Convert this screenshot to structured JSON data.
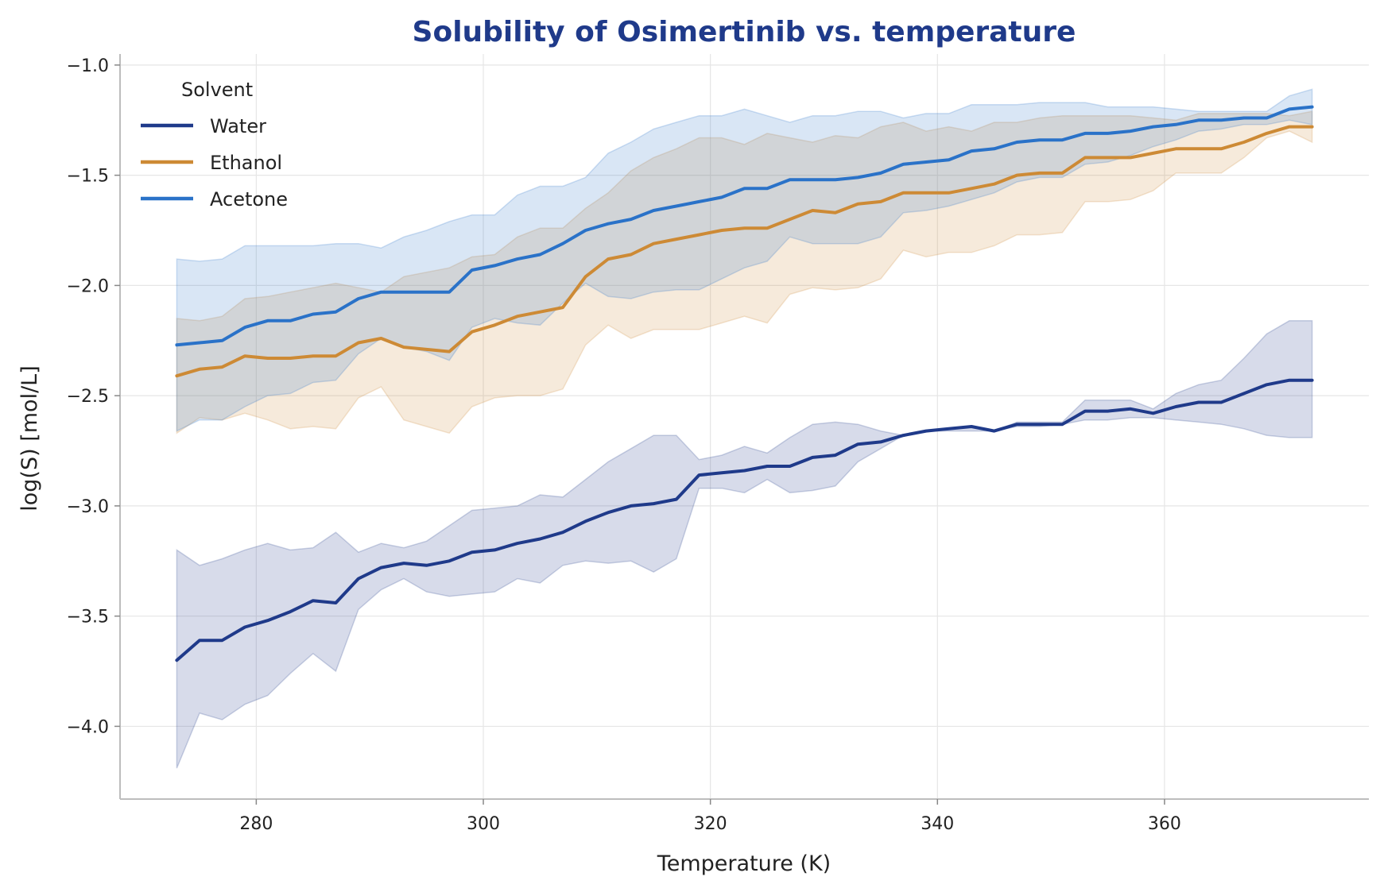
{
  "chart_data": {
    "type": "line",
    "title": "Solubility of Osimertinib vs. temperature",
    "xlabel": "Temperature (K)",
    "ylabel": "log(S) [mol/L]",
    "xlim": [
      268,
      378
    ],
    "ylim": [
      -4.33,
      -0.95
    ],
    "xticks": [
      280,
      300,
      320,
      340,
      360
    ],
    "xtick_labels": [
      "280",
      "300",
      "320",
      "340",
      "360"
    ],
    "yticks": [
      -4.0,
      -3.5,
      -3.0,
      -2.5,
      -2.0,
      -1.5,
      -1.0
    ],
    "ytick_labels": [
      "−4.0",
      "−3.5",
      "−3.0",
      "−2.5",
      "−2.0",
      "−1.5",
      "−1.0"
    ],
    "grid": true,
    "legend": {
      "title": "Solvent",
      "position": "top-left"
    },
    "x": [
      273,
      275,
      277,
      279,
      281,
      283,
      285,
      287,
      289,
      291,
      293,
      295,
      297,
      299,
      301,
      303,
      305,
      307,
      309,
      311,
      313,
      315,
      317,
      319,
      321,
      323,
      325,
      327,
      329,
      331,
      333,
      335,
      337,
      339,
      341,
      343,
      345,
      347,
      349,
      351,
      353,
      355,
      357,
      359,
      361,
      363,
      365,
      367,
      369,
      371,
      373
    ],
    "series": [
      {
        "name": "Water",
        "color": "#1f3a8a",
        "values": [
          -3.7,
          -3.61,
          -3.61,
          -3.55,
          -3.52,
          -3.48,
          -3.43,
          -3.44,
          -3.33,
          -3.28,
          -3.26,
          -3.27,
          -3.25,
          -3.21,
          -3.2,
          -3.17,
          -3.15,
          -3.12,
          -3.07,
          -3.03,
          -3.0,
          -2.99,
          -2.97,
          -2.86,
          -2.85,
          -2.84,
          -2.82,
          -2.82,
          -2.78,
          -2.77,
          -2.72,
          -2.71,
          -2.68,
          -2.66,
          -2.65,
          -2.64,
          -2.66,
          -2.63,
          -2.63,
          -2.63,
          -2.57,
          -2.57,
          -2.56,
          -2.58,
          -2.55,
          -2.53,
          -2.53,
          -2.49,
          -2.45,
          -2.43,
          -2.43
        ],
        "upper": [
          -3.2,
          -3.27,
          -3.24,
          -3.2,
          -3.17,
          -3.2,
          -3.19,
          -3.12,
          -3.21,
          -3.17,
          -3.19,
          -3.16,
          -3.09,
          -3.02,
          -3.01,
          -3.0,
          -2.95,
          -2.96,
          -2.88,
          -2.8,
          -2.74,
          -2.68,
          -2.68,
          -2.79,
          -2.77,
          -2.73,
          -2.76,
          -2.69,
          -2.63,
          -2.62,
          -2.63,
          -2.66,
          -2.68,
          -2.66,
          -2.65,
          -2.64,
          -2.66,
          -2.62,
          -2.62,
          -2.62,
          -2.52,
          -2.52,
          -2.52,
          -2.56,
          -2.49,
          -2.45,
          -2.43,
          -2.33,
          -2.22,
          -2.16,
          -2.16
        ],
        "lower": [
          -4.19,
          -3.94,
          -3.97,
          -3.9,
          -3.86,
          -3.76,
          -3.67,
          -3.75,
          -3.47,
          -3.38,
          -3.33,
          -3.39,
          -3.41,
          -3.4,
          -3.39,
          -3.33,
          -3.35,
          -3.27,
          -3.25,
          -3.26,
          -3.25,
          -3.3,
          -3.24,
          -2.92,
          -2.92,
          -2.94,
          -2.88,
          -2.94,
          -2.93,
          -2.91,
          -2.8,
          -2.74,
          -2.68,
          -2.66,
          -2.66,
          -2.66,
          -2.66,
          -2.64,
          -2.64,
          -2.63,
          -2.61,
          -2.61,
          -2.6,
          -2.6,
          -2.61,
          -2.62,
          -2.63,
          -2.65,
          -2.68,
          -2.69,
          -2.69
        ]
      },
      {
        "name": "Ethanol",
        "color": "#cd8a35",
        "values": [
          -2.41,
          -2.38,
          -2.37,
          -2.32,
          -2.33,
          -2.33,
          -2.32,
          -2.32,
          -2.26,
          -2.24,
          -2.28,
          -2.29,
          -2.3,
          -2.21,
          -2.18,
          -2.14,
          -2.12,
          -2.1,
          -1.96,
          -1.88,
          -1.86,
          -1.81,
          -1.79,
          -1.77,
          -1.75,
          -1.74,
          -1.74,
          -1.7,
          -1.66,
          -1.67,
          -1.63,
          -1.62,
          -1.58,
          -1.58,
          -1.58,
          -1.56,
          -1.54,
          -1.5,
          -1.49,
          -1.49,
          -1.42,
          -1.42,
          -1.42,
          -1.4,
          -1.38,
          -1.38,
          -1.38,
          -1.35,
          -1.31,
          -1.28,
          -1.28
        ],
        "upper": [
          -2.15,
          -2.16,
          -2.14,
          -2.06,
          -2.05,
          -2.03,
          -2.01,
          -1.99,
          -2.01,
          -2.03,
          -1.96,
          -1.94,
          -1.92,
          -1.87,
          -1.86,
          -1.78,
          -1.74,
          -1.74,
          -1.65,
          -1.58,
          -1.48,
          -1.42,
          -1.38,
          -1.33,
          -1.33,
          -1.36,
          -1.31,
          -1.33,
          -1.35,
          -1.32,
          -1.33,
          -1.28,
          -1.26,
          -1.3,
          -1.28,
          -1.3,
          -1.26,
          -1.26,
          -1.24,
          -1.23,
          -1.23,
          -1.23,
          -1.23,
          -1.24,
          -1.25,
          -1.22,
          -1.22,
          -1.22,
          -1.22,
          -1.23,
          -1.21
        ],
        "lower": [
          -2.67,
          -2.6,
          -2.61,
          -2.58,
          -2.61,
          -2.65,
          -2.64,
          -2.65,
          -2.51,
          -2.46,
          -2.61,
          -2.64,
          -2.67,
          -2.55,
          -2.51,
          -2.5,
          -2.5,
          -2.47,
          -2.27,
          -2.18,
          -2.24,
          -2.2,
          -2.2,
          -2.2,
          -2.17,
          -2.14,
          -2.17,
          -2.04,
          -2.01,
          -2.02,
          -2.01,
          -1.97,
          -1.84,
          -1.87,
          -1.85,
          -1.85,
          -1.82,
          -1.77,
          -1.77,
          -1.76,
          -1.62,
          -1.62,
          -1.61,
          -1.57,
          -1.49,
          -1.49,
          -1.49,
          -1.42,
          -1.33,
          -1.3,
          -1.35
        ]
      },
      {
        "name": "Acetone",
        "color": "#2a72c8",
        "values": [
          -2.27,
          -2.26,
          -2.25,
          -2.19,
          -2.16,
          -2.16,
          -2.13,
          -2.12,
          -2.06,
          -2.03,
          -2.03,
          -2.03,
          -2.03,
          -1.93,
          -1.91,
          -1.88,
          -1.86,
          -1.81,
          -1.75,
          -1.72,
          -1.7,
          -1.66,
          -1.64,
          -1.62,
          -1.6,
          -1.56,
          -1.56,
          -1.52,
          -1.52,
          -1.52,
          -1.51,
          -1.49,
          -1.45,
          -1.44,
          -1.43,
          -1.39,
          -1.38,
          -1.35,
          -1.34,
          -1.34,
          -1.31,
          -1.31,
          -1.3,
          -1.28,
          -1.27,
          -1.25,
          -1.25,
          -1.24,
          -1.24,
          -1.2,
          -1.19
        ],
        "upper": [
          -1.88,
          -1.89,
          -1.88,
          -1.82,
          -1.82,
          -1.82,
          -1.82,
          -1.81,
          -1.81,
          -1.83,
          -1.78,
          -1.75,
          -1.71,
          -1.68,
          -1.68,
          -1.59,
          -1.55,
          -1.55,
          -1.51,
          -1.4,
          -1.35,
          -1.29,
          -1.26,
          -1.23,
          -1.23,
          -1.2,
          -1.23,
          -1.26,
          -1.23,
          -1.23,
          -1.21,
          -1.21,
          -1.24,
          -1.22,
          -1.22,
          -1.18,
          -1.18,
          -1.18,
          -1.17,
          -1.17,
          -1.17,
          -1.19,
          -1.19,
          -1.19,
          -1.2,
          -1.21,
          -1.21,
          -1.21,
          -1.21,
          -1.14,
          -1.11
        ],
        "lower": [
          -2.66,
          -2.61,
          -2.61,
          -2.55,
          -2.5,
          -2.49,
          -2.44,
          -2.43,
          -2.31,
          -2.24,
          -2.28,
          -2.3,
          -2.34,
          -2.19,
          -2.15,
          -2.17,
          -2.18,
          -2.08,
          -1.99,
          -2.05,
          -2.06,
          -2.03,
          -2.02,
          -2.02,
          -1.97,
          -1.92,
          -1.89,
          -1.78,
          -1.81,
          -1.81,
          -1.81,
          -1.78,
          -1.67,
          -1.66,
          -1.64,
          -1.61,
          -1.58,
          -1.53,
          -1.51,
          -1.51,
          -1.45,
          -1.44,
          -1.41,
          -1.37,
          -1.34,
          -1.3,
          -1.29,
          -1.27,
          -1.27,
          -1.25,
          -1.27
        ]
      }
    ]
  }
}
